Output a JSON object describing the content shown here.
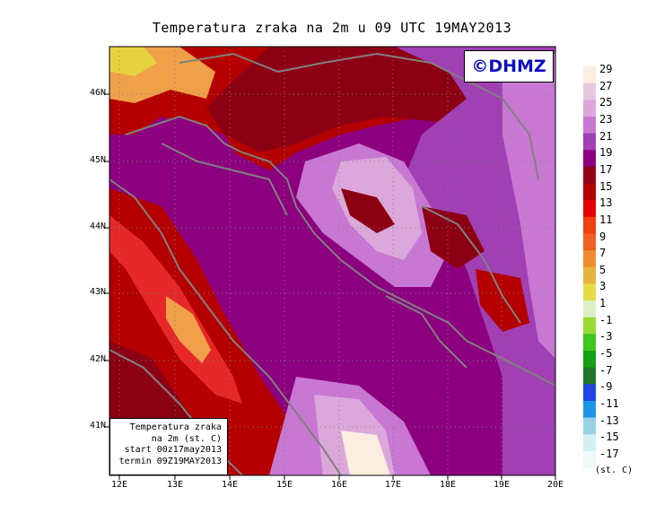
{
  "title": "Temperatura zraka na 2m u 09 UTC 19MAY2013",
  "logo_text": "©DHMZ",
  "info_box": {
    "line1": "Temperatura zraka",
    "line2": "na 2m (st. C)",
    "line3": "start 00z17may2013",
    "line4": "termin 09Z19MAY2013"
  },
  "map": {
    "lat_labels": [
      "46N",
      "45N",
      "44N",
      "43N",
      "42N",
      "41N"
    ],
    "lon_labels": [
      "12E",
      "13E",
      "14E",
      "15E",
      "16E",
      "17E",
      "18E",
      "19E",
      "20E"
    ]
  },
  "colorbar": {
    "labels": [
      "29",
      "27",
      "25",
      "23",
      "21",
      "19",
      "17",
      "15",
      "13",
      "11",
      "9",
      "7",
      "5",
      "3",
      "1",
      "-1",
      "-3",
      "-5",
      "-7",
      "-9",
      "-11",
      "-13",
      "-15",
      "-17"
    ],
    "units": "(st. C)",
    "colors": [
      "#fbeee0",
      "#e8c8e0",
      "#dca8dc",
      "#c878d2",
      "#a040b4",
      "#8c0080",
      "#960018",
      "#b40000",
      "#e60000",
      "#f04010",
      "#f06020",
      "#f08c30",
      "#e6b43c",
      "#e6dc46",
      "#dcf0c8",
      "#96dc32",
      "#3cc81e",
      "#14a014",
      "#1e7828",
      "#1e46e6",
      "#1e96e6",
      "#96d2e6",
      "#d2f0f0",
      "#eefafa"
    ]
  },
  "field_colors": {
    "hot_orange": "#f0a048",
    "yellow": "#e6d23c",
    "red_light": "#e62828",
    "red": "#b40000",
    "dark_red": "#8c0014",
    "purple_dark": "#8c0080",
    "purple": "#a040b4",
    "lavender": "#c878d2",
    "lilac": "#dca8dc",
    "pale": "#f0dce8",
    "cream": "#fbeee0",
    "coast": "#808080"
  }
}
